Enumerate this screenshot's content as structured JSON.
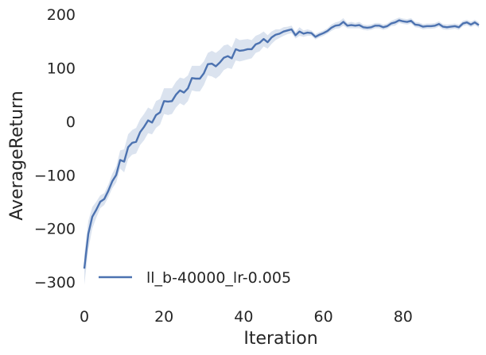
{
  "chart_data": {
    "type": "line",
    "title": "",
    "xlabel": "Iteration",
    "ylabel": "AverageReturn",
    "xlim": [
      0,
      99
    ],
    "ylim": [
      -325,
      215
    ],
    "xticks": [
      0,
      20,
      40,
      60,
      80
    ],
    "yticks": [
      -300,
      -200,
      -100,
      0,
      100,
      200
    ],
    "xtick_labels": [
      "0",
      "20",
      "40",
      "60",
      "80"
    ],
    "ytick_labels": [
      "−300",
      "−200",
      "−100",
      "0",
      "100",
      "200"
    ],
    "grid": false,
    "legend": {
      "position": "lower-left",
      "entries": [
        "ll_b-40000_lr-0.005"
      ]
    },
    "colors": {
      "line": "#4c72b0",
      "band": "#4c72b0"
    },
    "series": [
      {
        "name": "ll_b-40000_lr-0.005",
        "x": [
          0,
          1,
          2,
          3,
          4,
          5,
          6,
          7,
          8,
          9,
          10,
          11,
          12,
          13,
          14,
          15,
          16,
          17,
          18,
          19,
          20,
          21,
          22,
          23,
          24,
          25,
          26,
          27,
          28,
          29,
          30,
          31,
          32,
          33,
          34,
          35,
          36,
          37,
          38,
          39,
          40,
          41,
          42,
          43,
          44,
          45,
          46,
          47,
          48,
          49,
          50,
          51,
          52,
          53,
          54,
          55,
          56,
          57,
          58,
          59,
          60,
          61,
          62,
          63,
          64,
          65,
          66,
          67,
          68,
          69,
          70,
          71,
          72,
          73,
          74,
          75,
          76,
          77,
          78,
          79,
          80,
          81,
          82,
          83,
          84,
          85,
          86,
          87,
          88,
          89,
          90,
          91,
          92,
          93,
          94,
          95,
          96,
          97,
          98,
          99
        ],
        "y": [
          -275,
          -210,
          -178,
          -165,
          -150,
          -145,
          -130,
          -112,
          -100,
          -72,
          -75,
          -48,
          -40,
          -38,
          -20,
          -10,
          2,
          -2,
          12,
          17,
          38,
          37,
          38,
          50,
          58,
          54,
          62,
          81,
          80,
          80,
          90,
          107,
          108,
          103,
          110,
          119,
          122,
          118,
          135,
          132,
          133,
          135,
          135,
          144,
          147,
          154,
          148,
          157,
          162,
          164,
          168,
          170,
          172,
          161,
          168,
          164,
          166,
          165,
          158,
          162,
          165,
          169,
          175,
          179,
          180,
          186,
          179,
          180,
          179,
          180,
          176,
          175,
          176,
          179,
          179,
          176,
          178,
          183,
          185,
          189,
          187,
          186,
          188,
          181,
          180,
          177,
          178,
          178,
          179,
          182,
          177,
          176,
          177,
          178,
          176,
          183,
          185,
          181,
          185,
          180
        ],
        "lower": [
          -305,
          -240,
          -200,
          -180,
          -162,
          -156,
          -142,
          -125,
          -114,
          -88,
          -95,
          -70,
          -62,
          -60,
          -44,
          -35,
          -22,
          -24,
          -12,
          -6,
          14,
          12,
          14,
          26,
          34,
          30,
          38,
          58,
          56,
          56,
          68,
          86,
          84,
          80,
          86,
          96,
          100,
          98,
          114,
          112,
          114,
          116,
          118,
          128,
          131,
          140,
          136,
          145,
          152,
          156,
          160,
          163,
          165,
          155,
          160,
          158,
          160,
          160,
          153,
          157,
          160,
          164,
          169,
          173,
          174,
          179,
          174,
          174,
          174,
          174,
          171,
          170,
          171,
          174,
          174,
          171,
          173,
          178,
          179,
          184,
          182,
          181,
          183,
          176,
          175,
          172,
          173,
          173,
          174,
          177,
          172,
          171,
          172,
          173,
          171,
          178,
          180,
          176,
          180,
          175
        ],
        "upper": [
          -248,
          -186,
          -160,
          -150,
          -138,
          -134,
          -118,
          -98,
          -84,
          -54,
          -52,
          -24,
          -16,
          -12,
          4,
          14,
          26,
          22,
          38,
          42,
          62,
          62,
          62,
          74,
          82,
          80,
          86,
          104,
          104,
          104,
          112,
          128,
          132,
          128,
          134,
          142,
          144,
          138,
          156,
          152,
          153,
          154,
          152,
          160,
          163,
          168,
          161,
          168,
          172,
          172,
          176,
          177,
          179,
          167,
          176,
          170,
          172,
          170,
          163,
          167,
          170,
          174,
          181,
          185,
          187,
          193,
          184,
          186,
          184,
          186,
          181,
          180,
          181,
          184,
          184,
          181,
          183,
          188,
          191,
          194,
          192,
          191,
          193,
          186,
          185,
          182,
          183,
          183,
          184,
          187,
          182,
          181,
          182,
          183,
          181,
          188,
          190,
          186,
          190,
          185
        ]
      }
    ]
  }
}
